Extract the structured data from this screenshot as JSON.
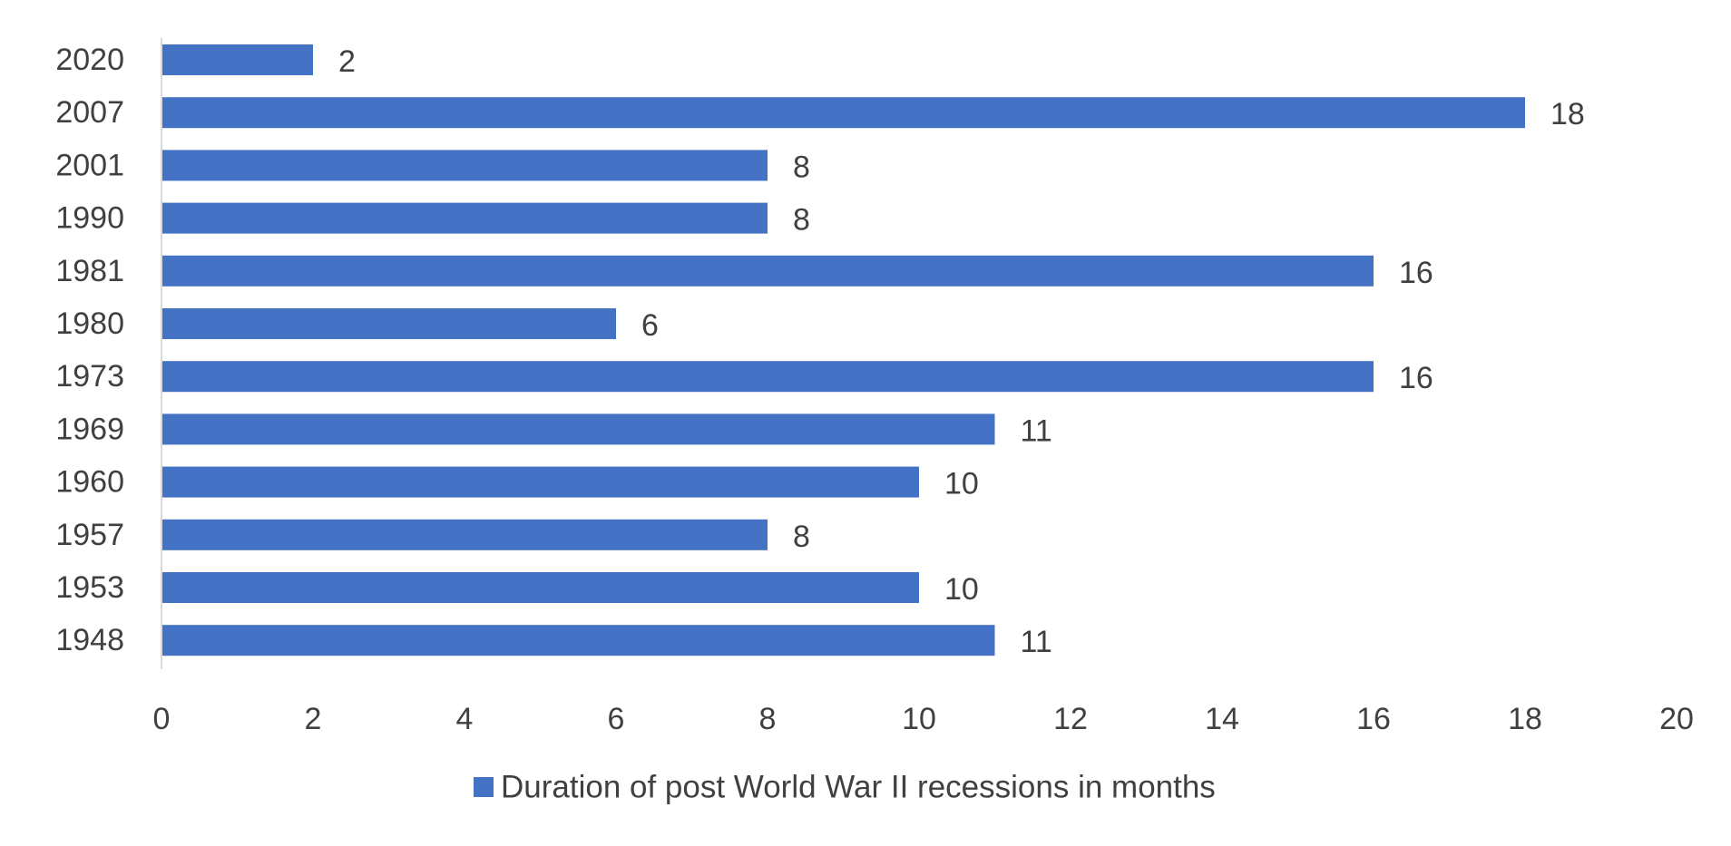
{
  "chart_data": {
    "type": "bar",
    "orientation": "horizontal",
    "title": "",
    "xlabel": "",
    "ylabel": "",
    "categories": [
      "2020",
      "2007",
      "2001",
      "1990",
      "1981",
      "1980",
      "1973",
      "1969",
      "1960",
      "1957",
      "1953",
      "1948"
    ],
    "series": [
      {
        "name": "Duration of post World War II recessions in months",
        "values": [
          2,
          18,
          8,
          8,
          16,
          6,
          16,
          11,
          10,
          8,
          10,
          11
        ],
        "color": "#4472C4"
      }
    ],
    "xlim": [
      0,
      20
    ],
    "x_ticks": [
      "0",
      "2",
      "4",
      "6",
      "8",
      "10",
      "12",
      "14",
      "16",
      "18",
      "20"
    ],
    "grid": false,
    "data_labels": true,
    "legend": {
      "position": "bottom",
      "entries": [
        "Duration of post World War II recessions in months"
      ]
    }
  },
  "colors": {
    "bar": "#4472C4",
    "text": "#404040",
    "axis": "#d9d9d9"
  }
}
